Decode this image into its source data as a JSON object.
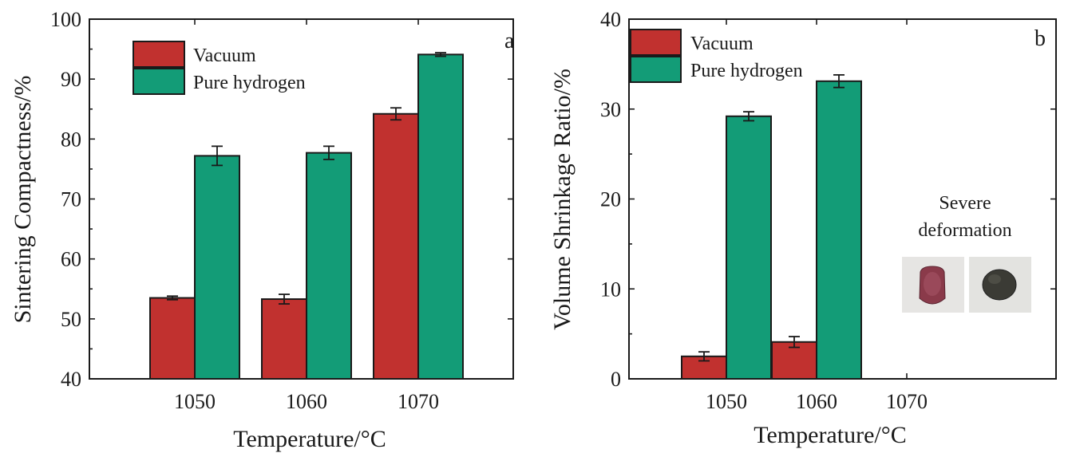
{
  "chart_data": [
    {
      "type": "bar",
      "panel": "a",
      "categories": [
        "1050",
        "1060",
        "1070"
      ],
      "series": [
        {
          "name": "Vacuum",
          "color": "#c1312f",
          "values": [
            53.5,
            53.3,
            84.2
          ],
          "errors": [
            0.3,
            0.8,
            1.0
          ]
        },
        {
          "name": "Pure hydrogen",
          "color": "#139c77",
          "values": [
            77.2,
            77.7,
            94.1
          ],
          "errors": [
            1.6,
            1.1,
            0.3
          ]
        }
      ],
      "xlabel": "Temperature/°C",
      "ylabel": "Sintering Compactness/%",
      "ylim": [
        40,
        100
      ],
      "yticks": [
        "40",
        "50",
        "60",
        "70",
        "80",
        "90",
        "100"
      ],
      "legend_position": "top-left"
    },
    {
      "type": "bar",
      "panel": "b",
      "categories": [
        "1050",
        "1060",
        "1070"
      ],
      "series": [
        {
          "name": "Vacuum",
          "color": "#c1312f",
          "values": [
            2.5,
            4.1,
            null
          ],
          "errors": [
            0.5,
            0.6,
            null
          ]
        },
        {
          "name": "Pure hydrogen",
          "color": "#139c77",
          "values": [
            29.2,
            33.1,
            null
          ],
          "errors": [
            0.5,
            0.7,
            null
          ]
        }
      ],
      "xlabel": "Temperature/°C",
      "ylabel": "Volume Shrinkage Ratio/%",
      "ylim": [
        0,
        40
      ],
      "yticks": [
        "0",
        "10",
        "20",
        "30",
        "40"
      ],
      "legend_position": "top-left",
      "annotation": [
        "Severe",
        "deformation"
      ]
    }
  ]
}
